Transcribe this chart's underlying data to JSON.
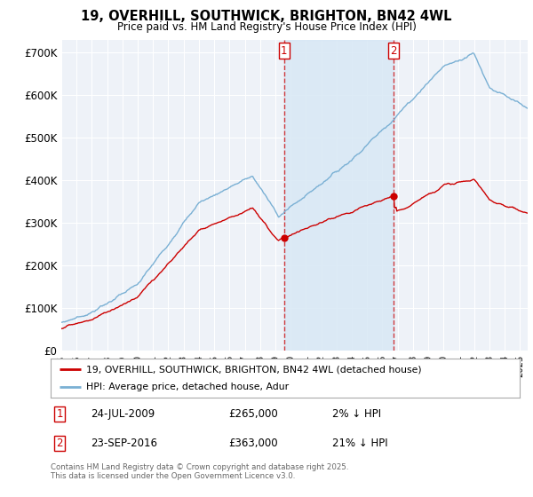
{
  "title": "19, OVERHILL, SOUTHWICK, BRIGHTON, BN42 4WL",
  "subtitle": "Price paid vs. HM Land Registry's House Price Index (HPI)",
  "background_color": "#ffffff",
  "plot_background": "#eef2f8",
  "grid_color": "#ffffff",
  "hpi_color": "#7ab0d4",
  "price_color": "#cc0000",
  "vline_color": "#cc0000",
  "vfill_color": "#d8e8f5",
  "ylim": [
    0,
    730000
  ],
  "yticks": [
    0,
    100000,
    200000,
    300000,
    400000,
    500000,
    600000,
    700000
  ],
  "ytick_labels": [
    "£0",
    "£100K",
    "£200K",
    "£300K",
    "£400K",
    "£500K",
    "£600K",
    "£700K"
  ],
  "sale1_date_num": 2009.56,
  "sale1_price": 265000,
  "sale1_label": "1",
  "sale2_date_num": 2016.73,
  "sale2_price": 363000,
  "sale2_label": "2",
  "legend_line1": "19, OVERHILL, SOUTHWICK, BRIGHTON, BN42 4WL (detached house)",
  "legend_line2": "HPI: Average price, detached house, Adur",
  "footer": "Contains HM Land Registry data © Crown copyright and database right 2025.\nThis data is licensed under the Open Government Licence v3.0.",
  "xmin": 1995,
  "xmax": 2025.5
}
